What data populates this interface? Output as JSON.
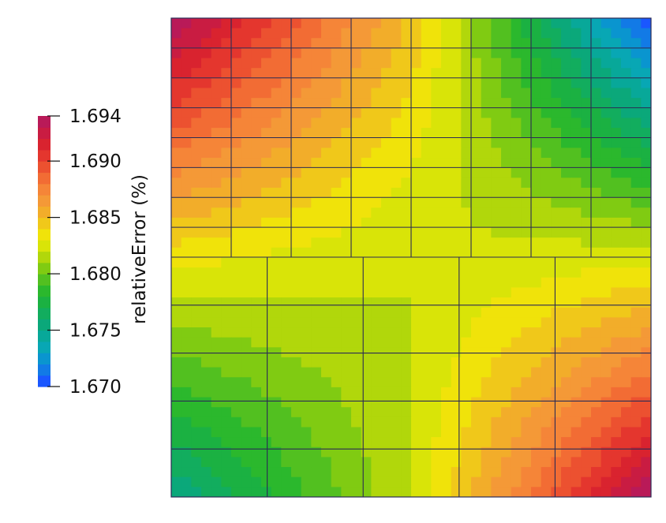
{
  "chart_data": {
    "type": "heatmap",
    "colorbar": {
      "title": "relativeError (%)",
      "range": [
        1.67,
        1.694
      ],
      "tick_values": [
        1.694,
        1.69,
        1.685,
        1.68,
        1.675,
        1.67
      ],
      "tick_labels": [
        "1.694",
        "1.690",
        "1.685",
        "1.680",
        "1.675",
        "1.670"
      ],
      "color_bands": [
        "#1a57ff",
        "#127ae6",
        "#0a95cf",
        "#08a7b4",
        "#08a899",
        "#0ba87a",
        "#12ad5e",
        "#1bb142",
        "#2bb82d",
        "#52c020",
        "#80cb12",
        "#b1d70b",
        "#d9e408",
        "#f0e30a",
        "#f0c81a",
        "#f2ad2a",
        "#f49937",
        "#f58538",
        "#f26c34",
        "#ec5130",
        "#e4362e",
        "#d9232f",
        "#c91c42",
        "#b91a58"
      ]
    },
    "field": {
      "corner_values": {
        "top_left": 1.694,
        "top_right": 1.67,
        "bottom_left": 1.675,
        "bottom_right": 1.694
      },
      "mid_values": {
        "top_middle": 1.686,
        "mid_left": 1.683,
        "center": 1.682,
        "mid_right": 1.683,
        "bottom_middle": 1.681
      },
      "grid": {
        "upper_block": {
          "rows": 8,
          "cols": 8
        },
        "lower_block": {
          "rows": 5,
          "cols": 5
        }
      }
    }
  }
}
